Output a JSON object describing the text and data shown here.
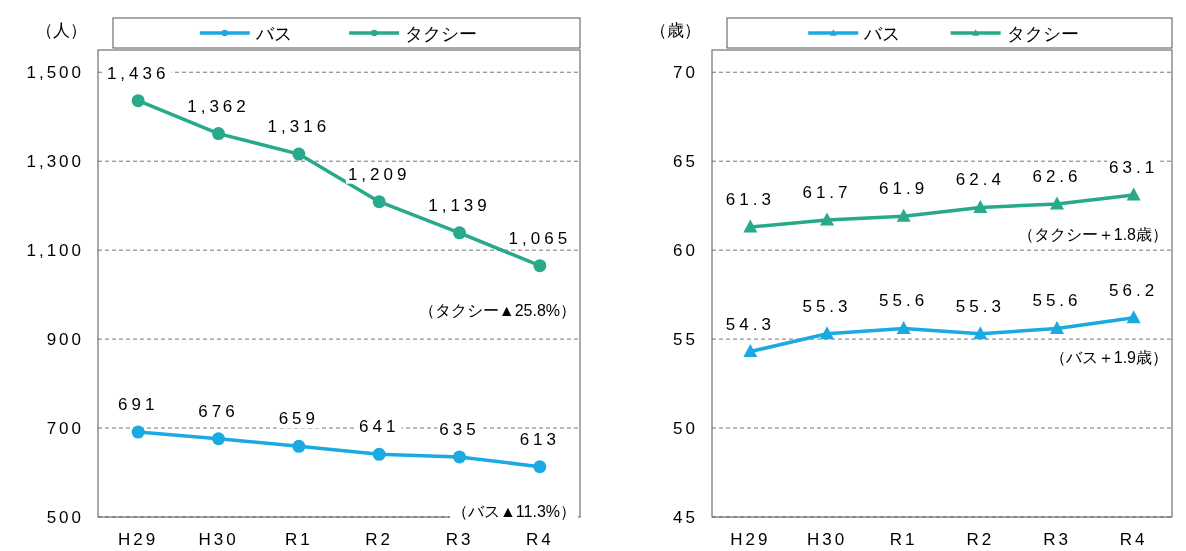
{
  "chart_data": [
    {
      "type": "line",
      "ylabel": "（人）",
      "categories": [
        "H29",
        "H30",
        "R1",
        "R2",
        "R3",
        "R4"
      ],
      "series": [
        {
          "name": "バス",
          "color": "#1ba9e1",
          "values": [
            691,
            676,
            659,
            641,
            635,
            613
          ],
          "value_labels": [
            "691",
            "676",
            "659",
            "641",
            "635",
            "613"
          ]
        },
        {
          "name": "タクシー",
          "color": "#27a98a",
          "values": [
            1436,
            1362,
            1316,
            1209,
            1139,
            1065
          ],
          "value_labels": [
            "1,436",
            "1,362",
            "1,316",
            "1,209",
            "1,139",
            "1,065"
          ]
        }
      ],
      "ylim": [
        500,
        1550
      ],
      "yticks": [
        {
          "value": 500,
          "label": "500"
        },
        {
          "value": 700,
          "label": "700"
        },
        {
          "value": 900,
          "label": "900"
        },
        {
          "value": 1100,
          "label": "1,100"
        },
        {
          "value": 1300,
          "label": "1,300"
        },
        {
          "value": 1500,
          "label": "1,500"
        }
      ],
      "grid": "y",
      "legend": "top",
      "marker": "circle",
      "annotations": [
        "（タクシー▲25.8%）",
        "（バス▲11.3%）"
      ]
    },
    {
      "type": "line",
      "ylabel": "（歳）",
      "categories": [
        "H29",
        "H30",
        "R1",
        "R2",
        "R3",
        "R4"
      ],
      "series": [
        {
          "name": "バス",
          "color": "#1ba9e1",
          "values": [
            54.3,
            55.3,
            55.6,
            55.3,
            55.6,
            56.2
          ]
        },
        {
          "name": "タクシー",
          "color": "#27a98a",
          "values": [
            61.3,
            61.7,
            61.9,
            62.4,
            62.6,
            63.1
          ]
        }
      ],
      "ylim": [
        45,
        71.25
      ],
      "yticks": [
        45,
        50,
        55,
        60,
        65,
        70
      ],
      "grid": "y",
      "legend": "top",
      "marker": "triangle",
      "data_labels": true,
      "annotations": [
        "（タクシー＋1.8歳）",
        "（バス＋1.9歳）"
      ]
    }
  ]
}
